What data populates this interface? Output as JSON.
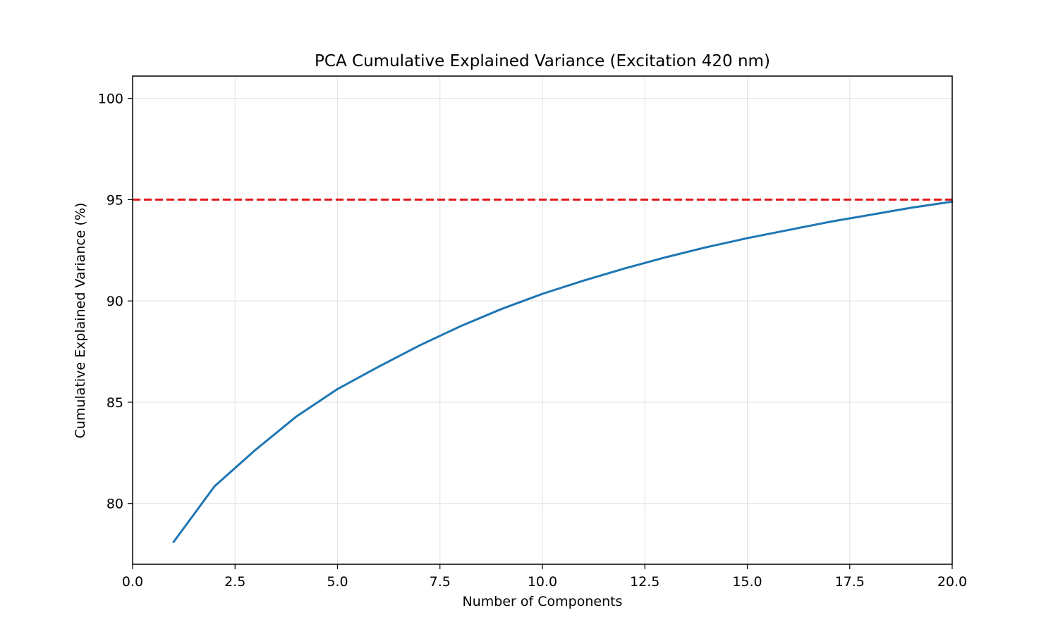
{
  "chart_data": {
    "type": "line",
    "title": "PCA Cumulative Explained Variance (Excitation 420 nm)",
    "xlabel": "Number of Components",
    "ylabel": "Cumulative Explained Variance (%)",
    "xlim": [
      0,
      20
    ],
    "ylim": [
      77,
      101.1
    ],
    "xticks": [
      0,
      2.5,
      5,
      7.5,
      10,
      12.5,
      15,
      17.5,
      20
    ],
    "xtick_labels": [
      "0.0",
      "2.5",
      "5.0",
      "7.5",
      "10.0",
      "12.5",
      "15.0",
      "17.5",
      "20.0"
    ],
    "yticks": [
      80,
      85,
      90,
      95,
      100
    ],
    "ytick_labels": [
      "80",
      "85",
      "90",
      "95",
      "100"
    ],
    "grid": true,
    "series": [
      {
        "color": "#1f77b4",
        "x": [
          1,
          2,
          3,
          4,
          5,
          6,
          7,
          8,
          9,
          10,
          11,
          12,
          13,
          14,
          15,
          16,
          17,
          18,
          19,
          20
        ],
        "values": [
          78.1,
          80.85,
          82.65,
          84.3,
          85.65,
          86.75,
          87.8,
          88.75,
          89.6,
          90.35,
          91.0,
          91.6,
          92.15,
          92.65,
          93.1,
          93.5,
          93.9,
          94.25,
          94.6,
          94.9
        ]
      }
    ],
    "reference_lines": [
      {
        "type": "horizontal",
        "y": 95,
        "color": "#e31a1c",
        "style": "dashed"
      }
    ]
  }
}
